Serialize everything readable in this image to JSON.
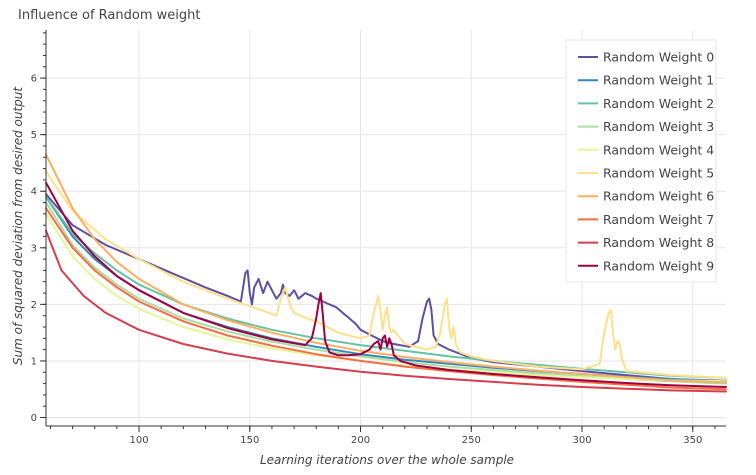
{
  "chart_data": {
    "type": "line",
    "title": "Influence of Random weight",
    "xlabel": "Learning iterations over the whole sample",
    "ylabel": "Sum of squared deviation from desired output",
    "xlim": [
      58,
      365
    ],
    "ylim": [
      -0.15,
      6.85
    ],
    "x_ticks": [
      100,
      150,
      200,
      250,
      300,
      350
    ],
    "y_ticks": [
      0,
      1,
      2,
      3,
      4,
      5,
      6
    ],
    "grid": true,
    "legend_position": "top-right",
    "series": [
      {
        "name": "Random Weight 0",
        "color": "#5e4fa2",
        "points": [
          [
            58,
            3.95
          ],
          [
            70,
            3.4
          ],
          [
            85,
            3.05
          ],
          [
            100,
            2.8
          ],
          [
            115,
            2.55
          ],
          [
            130,
            2.3
          ],
          [
            140,
            2.15
          ],
          [
            146,
            2.05
          ],
          [
            147,
            2.3
          ],
          [
            148,
            2.55
          ],
          [
            149,
            2.6
          ],
          [
            150,
            2.2
          ],
          [
            151,
            2.0
          ],
          [
            152,
            2.3
          ],
          [
            154,
            2.45
          ],
          [
            156,
            2.2
          ],
          [
            158,
            2.4
          ],
          [
            160,
            2.25
          ],
          [
            162,
            2.1
          ],
          [
            164,
            2.2
          ],
          [
            165,
            2.35
          ],
          [
            166,
            2.2
          ],
          [
            168,
            2.15
          ],
          [
            170,
            2.25
          ],
          [
            172,
            2.1
          ],
          [
            175,
            2.2
          ],
          [
            178,
            2.15
          ],
          [
            180,
            2.1
          ],
          [
            183,
            2.05
          ],
          [
            186,
            2.0
          ],
          [
            189,
            1.95
          ],
          [
            192,
            1.85
          ],
          [
            195,
            1.75
          ],
          [
            198,
            1.65
          ],
          [
            200,
            1.55
          ],
          [
            205,
            1.45
          ],
          [
            210,
            1.35
          ],
          [
            215,
            1.3
          ],
          [
            222,
            1.25
          ],
          [
            226,
            1.35
          ],
          [
            228,
            1.75
          ],
          [
            230,
            2.05
          ],
          [
            231,
            2.1
          ],
          [
            232,
            1.9
          ],
          [
            233,
            1.45
          ],
          [
            235,
            1.3
          ],
          [
            240,
            1.2
          ],
          [
            250,
            1.05
          ],
          [
            260,
            0.98
          ],
          [
            280,
            0.9
          ],
          [
            300,
            0.82
          ],
          [
            320,
            0.75
          ],
          [
            340,
            0.68
          ],
          [
            365,
            0.62
          ]
        ]
      },
      {
        "name": "Random Weight 1",
        "color": "#3288bd",
        "points": [
          [
            58,
            3.9
          ],
          [
            70,
            3.2
          ],
          [
            80,
            2.8
          ],
          [
            90,
            2.5
          ],
          [
            100,
            2.25
          ],
          [
            120,
            1.85
          ],
          [
            140,
            1.6
          ],
          [
            160,
            1.4
          ],
          [
            180,
            1.25
          ],
          [
            200,
            1.12
          ],
          [
            220,
            1.02
          ],
          [
            240,
            0.95
          ],
          [
            260,
            0.88
          ],
          [
            280,
            0.82
          ],
          [
            300,
            0.77
          ],
          [
            320,
            0.72
          ],
          [
            340,
            0.68
          ],
          [
            365,
            0.65
          ]
        ]
      },
      {
        "name": "Random Weight 2",
        "color": "#66c2a5",
        "points": [
          [
            58,
            3.9
          ],
          [
            70,
            3.25
          ],
          [
            80,
            2.9
          ],
          [
            90,
            2.6
          ],
          [
            100,
            2.35
          ],
          [
            120,
            2.0
          ],
          [
            140,
            1.75
          ],
          [
            160,
            1.55
          ],
          [
            180,
            1.4
          ],
          [
            200,
            1.28
          ],
          [
            220,
            1.18
          ],
          [
            240,
            1.08
          ],
          [
            260,
            1.0
          ],
          [
            280,
            0.93
          ],
          [
            300,
            0.86
          ],
          [
            320,
            0.8
          ],
          [
            340,
            0.74
          ],
          [
            365,
            0.7
          ]
        ]
      },
      {
        "name": "Random Weight 3",
        "color": "#abdda4",
        "points": [
          [
            58,
            3.8
          ],
          [
            70,
            3.05
          ],
          [
            80,
            2.65
          ],
          [
            90,
            2.35
          ],
          [
            100,
            2.1
          ],
          [
            120,
            1.75
          ],
          [
            140,
            1.52
          ],
          [
            160,
            1.34
          ],
          [
            180,
            1.2
          ],
          [
            200,
            1.08
          ],
          [
            220,
            0.98
          ],
          [
            240,
            0.9
          ],
          [
            260,
            0.84
          ],
          [
            280,
            0.78
          ],
          [
            300,
            0.73
          ],
          [
            320,
            0.68
          ],
          [
            340,
            0.64
          ],
          [
            365,
            0.6
          ]
        ]
      },
      {
        "name": "Random Weight 4",
        "color": "#e6f598",
        "points": [
          [
            58,
            3.6
          ],
          [
            70,
            2.85
          ],
          [
            80,
            2.45
          ],
          [
            90,
            2.15
          ],
          [
            100,
            1.92
          ],
          [
            120,
            1.6
          ],
          [
            140,
            1.38
          ],
          [
            160,
            1.22
          ],
          [
            180,
            1.1
          ],
          [
            200,
            1.0
          ],
          [
            220,
            0.92
          ],
          [
            240,
            0.85
          ],
          [
            260,
            0.8
          ],
          [
            280,
            0.75
          ],
          [
            300,
            0.71
          ],
          [
            320,
            0.68
          ],
          [
            340,
            0.66
          ],
          [
            365,
            0.64
          ]
        ]
      },
      {
        "name": "Random Weight 5",
        "color": "#fee08b",
        "points": [
          [
            58,
            4.35
          ],
          [
            70,
            3.65
          ],
          [
            85,
            3.15
          ],
          [
            100,
            2.8
          ],
          [
            120,
            2.4
          ],
          [
            140,
            2.1
          ],
          [
            155,
            1.9
          ],
          [
            162,
            1.8
          ],
          [
            164,
            2.1
          ],
          [
            166,
            2.3
          ],
          [
            168,
            2.0
          ],
          [
            170,
            1.85
          ],
          [
            173,
            1.8
          ],
          [
            176,
            1.75
          ],
          [
            180,
            1.7
          ],
          [
            185,
            1.6
          ],
          [
            190,
            1.5
          ],
          [
            195,
            1.45
          ],
          [
            200,
            1.4
          ],
          [
            204,
            1.45
          ],
          [
            206,
            1.85
          ],
          [
            208,
            2.15
          ],
          [
            209,
            1.9
          ],
          [
            210,
            1.55
          ],
          [
            211,
            1.8
          ],
          [
            212,
            1.95
          ],
          [
            213,
            1.6
          ],
          [
            214,
            1.5
          ],
          [
            215,
            1.55
          ],
          [
            217,
            1.45
          ],
          [
            220,
            1.3
          ],
          [
            225,
            1.25
          ],
          [
            230,
            1.2
          ],
          [
            234,
            1.25
          ],
          [
            236,
            1.5
          ],
          [
            238,
            2.0
          ],
          [
            239,
            2.1
          ],
          [
            240,
            1.6
          ],
          [
            241,
            1.4
          ],
          [
            242,
            1.6
          ],
          [
            243,
            1.3
          ],
          [
            245,
            1.15
          ],
          [
            250,
            1.08
          ],
          [
            260,
            1.0
          ],
          [
            280,
            0.9
          ],
          [
            300,
            0.85
          ],
          [
            308,
            0.95
          ],
          [
            310,
            1.5
          ],
          [
            312,
            1.85
          ],
          [
            313,
            1.9
          ],
          [
            314,
            1.5
          ],
          [
            315,
            1.2
          ],
          [
            316,
            1.35
          ],
          [
            317,
            1.3
          ],
          [
            318,
            1.05
          ],
          [
            320,
            0.82
          ],
          [
            340,
            0.75
          ],
          [
            365,
            0.7
          ]
        ]
      },
      {
        "name": "Random Weight 6",
        "color": "#fdae61",
        "points": [
          [
            58,
            4.65
          ],
          [
            70,
            3.7
          ],
          [
            80,
            3.15
          ],
          [
            90,
            2.75
          ],
          [
            100,
            2.45
          ],
          [
            120,
            2.0
          ],
          [
            140,
            1.72
          ],
          [
            160,
            1.5
          ],
          [
            180,
            1.32
          ],
          [
            200,
            1.18
          ],
          [
            220,
            1.07
          ],
          [
            240,
            0.98
          ],
          [
            260,
            0.9
          ],
          [
            280,
            0.83
          ],
          [
            300,
            0.77
          ],
          [
            320,
            0.71
          ],
          [
            340,
            0.66
          ],
          [
            365,
            0.62
          ]
        ]
      },
      {
        "name": "Random Weight 7",
        "color": "#f46d43",
        "points": [
          [
            58,
            3.7
          ],
          [
            70,
            3.0
          ],
          [
            80,
            2.6
          ],
          [
            90,
            2.3
          ],
          [
            100,
            2.05
          ],
          [
            120,
            1.7
          ],
          [
            140,
            1.45
          ],
          [
            160,
            1.27
          ],
          [
            180,
            1.12
          ],
          [
            200,
            1.0
          ],
          [
            220,
            0.9
          ],
          [
            240,
            0.82
          ],
          [
            260,
            0.75
          ],
          [
            280,
            0.69
          ],
          [
            300,
            0.63
          ],
          [
            320,
            0.58
          ],
          [
            340,
            0.53
          ],
          [
            365,
            0.5
          ]
        ]
      },
      {
        "name": "Random Weight 8",
        "color": "#d53e4f",
        "points": [
          [
            58,
            3.3
          ],
          [
            65,
            2.6
          ],
          [
            75,
            2.15
          ],
          [
            85,
            1.85
          ],
          [
            100,
            1.55
          ],
          [
            120,
            1.3
          ],
          [
            140,
            1.13
          ],
          [
            160,
            1.0
          ],
          [
            180,
            0.9
          ],
          [
            200,
            0.81
          ],
          [
            220,
            0.74
          ],
          [
            240,
            0.68
          ],
          [
            260,
            0.63
          ],
          [
            280,
            0.58
          ],
          [
            300,
            0.54
          ],
          [
            320,
            0.51
          ],
          [
            340,
            0.48
          ],
          [
            365,
            0.46
          ]
        ]
      },
      {
        "name": "Random Weight 9",
        "color": "#9e0142",
        "points": [
          [
            58,
            4.15
          ],
          [
            70,
            3.3
          ],
          [
            80,
            2.85
          ],
          [
            90,
            2.5
          ],
          [
            100,
            2.25
          ],
          [
            120,
            1.85
          ],
          [
            140,
            1.58
          ],
          [
            160,
            1.38
          ],
          [
            175,
            1.28
          ],
          [
            178,
            1.4
          ],
          [
            180,
            1.75
          ],
          [
            181,
            2.0
          ],
          [
            182,
            2.2
          ],
          [
            183,
            1.8
          ],
          [
            184,
            1.35
          ],
          [
            186,
            1.15
          ],
          [
            190,
            1.1
          ],
          [
            195,
            1.1
          ],
          [
            200,
            1.12
          ],
          [
            204,
            1.2
          ],
          [
            206,
            1.3
          ],
          [
            208,
            1.35
          ],
          [
            209,
            1.2
          ],
          [
            210,
            1.4
          ],
          [
            211,
            1.45
          ],
          [
            212,
            1.25
          ],
          [
            213,
            1.4
          ],
          [
            214,
            1.3
          ],
          [
            215,
            1.1
          ],
          [
            218,
            1.0
          ],
          [
            225,
            0.92
          ],
          [
            240,
            0.84
          ],
          [
            260,
            0.77
          ],
          [
            280,
            0.71
          ],
          [
            300,
            0.66
          ],
          [
            320,
            0.61
          ],
          [
            340,
            0.57
          ],
          [
            365,
            0.54
          ]
        ]
      }
    ]
  }
}
